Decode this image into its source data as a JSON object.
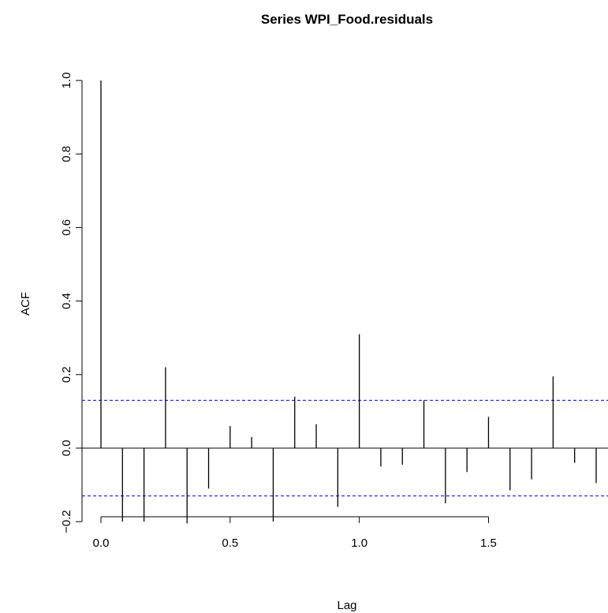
{
  "chart_data": {
    "type": "bar",
    "title": "Series  WPI_Food.residuals",
    "xlabel": "Lag",
    "ylabel": "ACF",
    "xlim": [
      0.0,
      1.9167
    ],
    "ylim": [
      -0.2,
      1.0
    ],
    "x_ticks": [
      "0.0",
      "0.5",
      "1.0",
      "1.5"
    ],
    "y_ticks": [
      "−0.2",
      "0.0",
      "0.2",
      "0.4",
      "0.6",
      "0.8",
      "1.0"
    ],
    "confidence_bound": 0.13,
    "lags": [
      0,
      0.0833,
      0.1667,
      0.25,
      0.3333,
      0.4167,
      0.5,
      0.5833,
      0.6667,
      0.75,
      0.8333,
      0.9167,
      1.0,
      1.0833,
      1.1667,
      1.25,
      1.3333,
      1.4167,
      1.5,
      1.5833,
      1.6667,
      1.75,
      1.8333,
      1.9167
    ],
    "acf": [
      1.0,
      -0.2,
      -0.2,
      0.22,
      -0.205,
      -0.11,
      0.06,
      0.03,
      -0.2,
      0.14,
      0.065,
      -0.16,
      0.31,
      -0.05,
      -0.045,
      0.13,
      -0.15,
      -0.065,
      0.085,
      -0.115,
      -0.085,
      0.195,
      -0.04,
      -0.095
    ],
    "grid": false,
    "colors": {
      "spike": "#000000",
      "bound": "#0000ff",
      "axis": "#000000"
    }
  }
}
